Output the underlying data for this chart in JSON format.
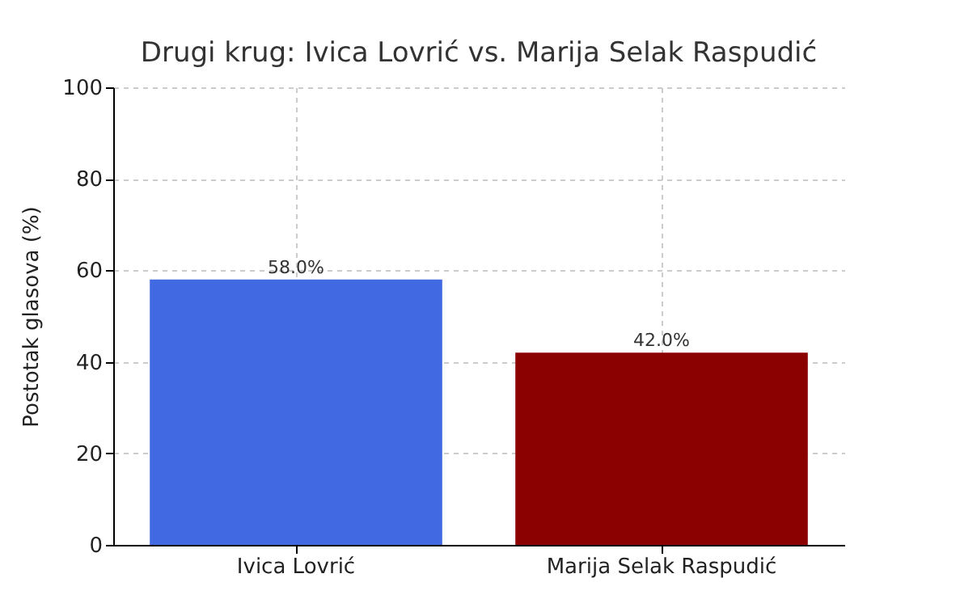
{
  "chart_data": {
    "type": "bar",
    "title": "Drugi krug: Ivica Lovrić vs. Marija Selak Raspudić",
    "ylabel": "Postotak glasova (%)",
    "categories": [
      "Ivica Lovrić",
      "Marija Selak Raspudić"
    ],
    "values": [
      58.0,
      42.0
    ],
    "colors": [
      "#4169e1",
      "#8b0000"
    ],
    "value_labels": [
      "58.0%",
      "42.0%"
    ],
    "ylim": [
      0,
      100
    ],
    "yticks": [
      0,
      20,
      40,
      60,
      80,
      100
    ],
    "grid": true
  }
}
